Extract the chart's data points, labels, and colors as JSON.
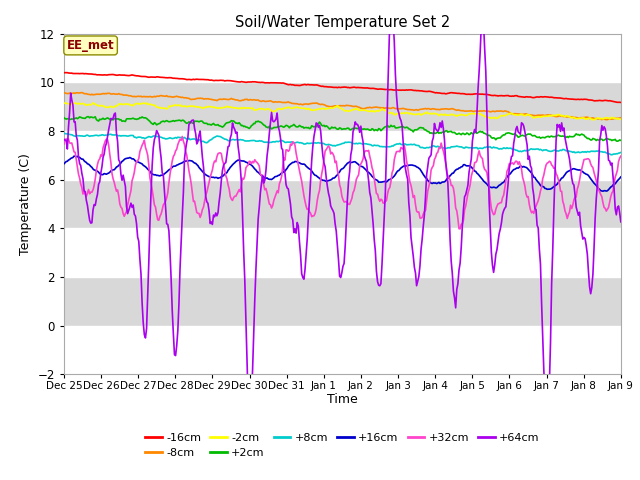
{
  "title": "Soil/Water Temperature Set 2",
  "xlabel": "Time",
  "ylabel": "Temperature (C)",
  "ylim": [
    -2,
    12
  ],
  "annotation": "EE_met",
  "annotation_color": "#8B0000",
  "annotation_bg": "#FFFFC0",
  "background_color": "#ffffff",
  "plot_bg_light": "#f0f0f0",
  "plot_bg_dark": "#d8d8d8",
  "grid_color": "#ffffff",
  "series_colors": {
    "-16cm": "#ff0000",
    "-8cm": "#ff8800",
    "-2cm": "#ffff00",
    "+2cm": "#00bb00",
    "+8cm": "#00cccc",
    "+16cm": "#0000cc",
    "+32cm": "#ff44cc",
    "+64cm": "#aa00ee"
  },
  "x_tick_labels": [
    "Dec 25",
    "Dec 26",
    "Dec 27",
    "Dec 28",
    "Dec 29",
    "Dec 30",
    "Dec 31",
    "Jan 1",
    "Jan 2",
    "Jan 3",
    "Jan 4",
    "Jan 5",
    "Jan 6",
    "Jan 7",
    "Jan 8",
    "Jan 9"
  ],
  "yticks": [
    -2,
    0,
    2,
    4,
    6,
    8,
    10,
    12
  ],
  "num_points": 500,
  "duration_days": 15
}
